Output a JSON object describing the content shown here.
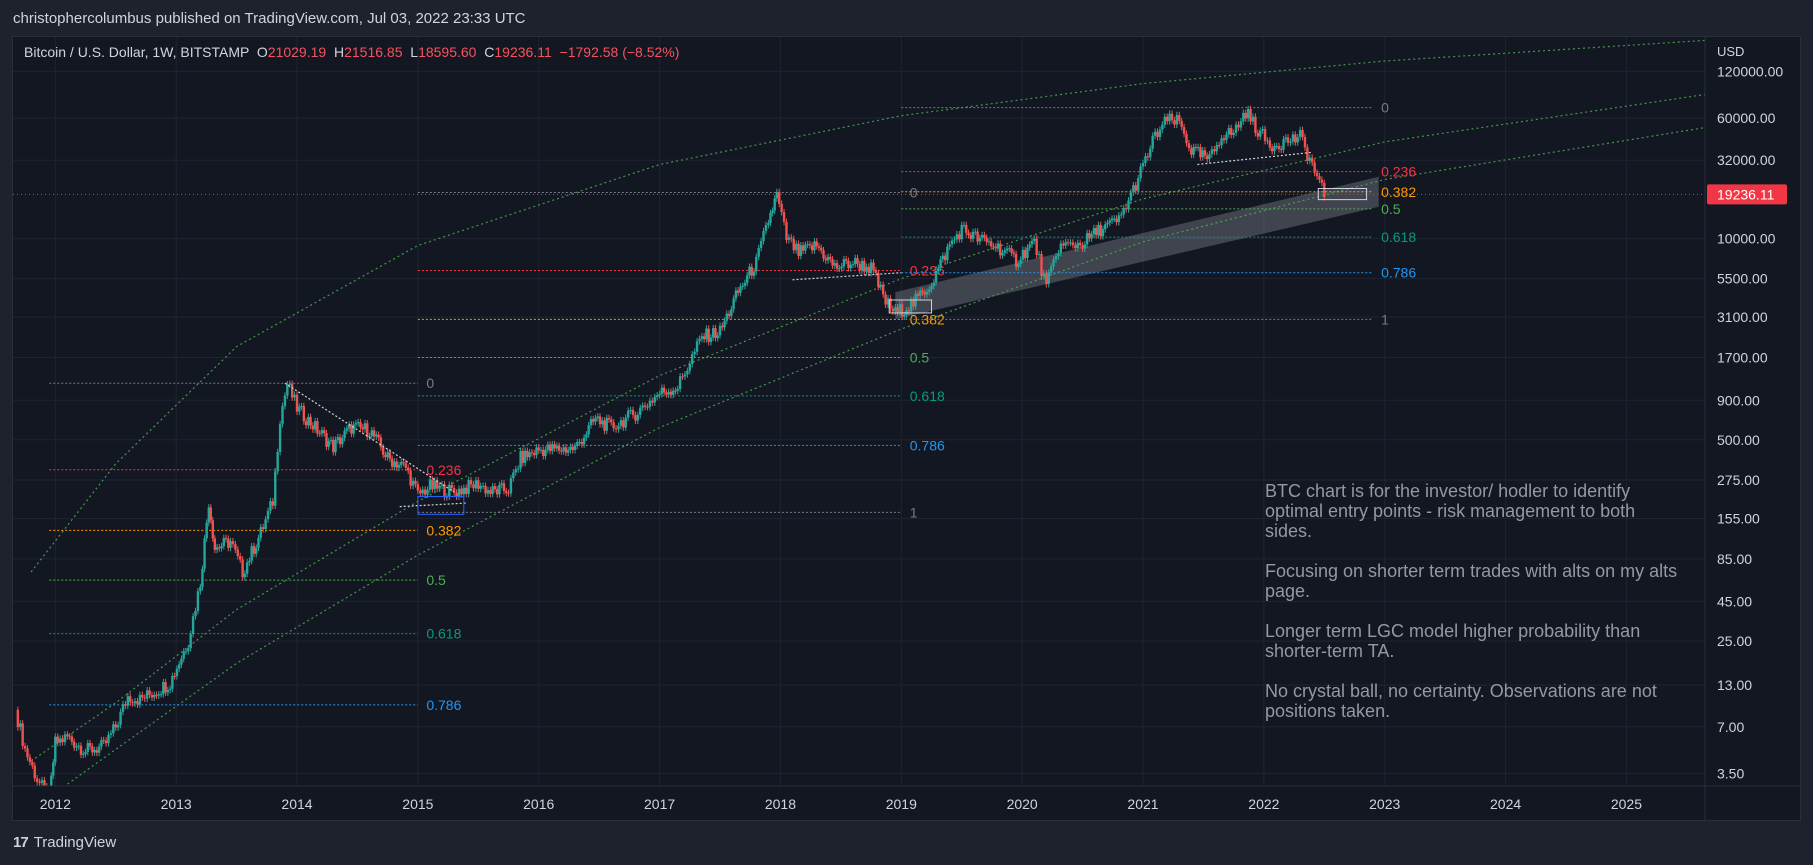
{
  "header": {
    "published": "christophercolumbus published on TradingView.com, Jul 03, 2022 23:33 UTC"
  },
  "legend": {
    "symbol": "Bitcoin / U.S. Dollar, 1W, BITSTAMP",
    "o_label": "O",
    "o_value": "21029.19",
    "h_label": "H",
    "h_value": "21516.85",
    "l_label": "L",
    "l_value": "18595.60",
    "c_label": "C",
    "c_value": "19236.11",
    "change": "−1792.58 (−8.52%)"
  },
  "footer": {
    "logo_mark": "17",
    "logo_text": "TradingView"
  },
  "note": {
    "p1": "BTC chart is for the investor/ hodler to identify optimal entry points - risk management to both sides.",
    "p2": "Focusing on shorter term trades with alts on my alts page.",
    "p3": "Longer term LGC model higher probability than shorter-term TA.",
    "p4": "No crystal ball, no certainty. Observations are not positions taken."
  },
  "colors": {
    "bg": "#131722",
    "up": "#26a69a",
    "down": "#ef5350",
    "grid": "#1f2430",
    "fib_0": "#787b86",
    "fib_236": "#f23645",
    "fib_382": "#ff9800",
    "fib_5": "#4caf50",
    "fib_618": "#089981",
    "fib_786": "#2196f3",
    "fib_1": "#787b86",
    "lgc": "#4caf50",
    "price_tag": "#f23645"
  },
  "chart_data": {
    "type": "candlestick",
    "timeframe": "1W",
    "currency": "USD",
    "y_scale": "log",
    "ylim": [
      2.9,
      200000
    ],
    "xlim": [
      2011.65,
      2025.65
    ],
    "x_ticks": [
      "2012",
      "2013",
      "2014",
      "2015",
      "2016",
      "2017",
      "2018",
      "2019",
      "2020",
      "2021",
      "2022",
      "2023",
      "2024",
      "2025"
    ],
    "y_ticks": [
      "120000.00",
      "60000.00",
      "32000.00",
      "10000.00",
      "5500.00",
      "3100.00",
      "1700.00",
      "900.00",
      "500.00",
      "275.00",
      "155.00",
      "85.00",
      "45.00",
      "25.00",
      "13.00",
      "7.00",
      "3.50"
    ],
    "last_price": "19236.11",
    "price_path": [
      [
        2011.67,
        9
      ],
      [
        2011.75,
        5
      ],
      [
        2011.85,
        3.2
      ],
      [
        2011.95,
        2.4
      ],
      [
        2012.0,
        5.5
      ],
      [
        2012.1,
        6
      ],
      [
        2012.25,
        4.9
      ],
      [
        2012.4,
        5.2
      ],
      [
        2012.5,
        7
      ],
      [
        2012.6,
        11
      ],
      [
        2012.7,
        10.5
      ],
      [
        2012.8,
        11.5
      ],
      [
        2012.95,
        13.5
      ],
      [
        2013.1,
        25
      ],
      [
        2013.2,
        60
      ],
      [
        2013.27,
        200
      ],
      [
        2013.32,
        100
      ],
      [
        2013.45,
        110
      ],
      [
        2013.55,
        70
      ],
      [
        2013.7,
        125
      ],
      [
        2013.8,
        200
      ],
      [
        2013.86,
        700
      ],
      [
        2013.92,
        1150
      ],
      [
        2014.0,
        800
      ],
      [
        2014.15,
        600
      ],
      [
        2014.3,
        450
      ],
      [
        2014.45,
        600
      ],
      [
        2014.6,
        580
      ],
      [
        2014.75,
        380
      ],
      [
        2014.9,
        330
      ],
      [
        2015.0,
        220
      ],
      [
        2015.1,
        250
      ],
      [
        2015.3,
        230
      ],
      [
        2015.5,
        260
      ],
      [
        2015.6,
        230
      ],
      [
        2015.75,
        240
      ],
      [
        2015.85,
        380
      ],
      [
        2016.0,
        430
      ],
      [
        2016.3,
        440
      ],
      [
        2016.47,
        680
      ],
      [
        2016.6,
        600
      ],
      [
        2016.8,
        740
      ],
      [
        2017.0,
        1000
      ],
      [
        2017.15,
        1100
      ],
      [
        2017.35,
        2300
      ],
      [
        2017.5,
        2500
      ],
      [
        2017.65,
        4500
      ],
      [
        2017.8,
        7000
      ],
      [
        2017.9,
        13000
      ],
      [
        2017.97,
        19000
      ],
      [
        2018.05,
        10000
      ],
      [
        2018.15,
        8000
      ],
      [
        2018.3,
        9000
      ],
      [
        2018.45,
        6500
      ],
      [
        2018.6,
        7000
      ],
      [
        2018.75,
        6400
      ],
      [
        2018.87,
        3900
      ],
      [
        2018.95,
        3300
      ],
      [
        2019.1,
        3800
      ],
      [
        2019.25,
        5200
      ],
      [
        2019.4,
        9000
      ],
      [
        2019.5,
        11500
      ],
      [
        2019.65,
        9800
      ],
      [
        2019.8,
        8800
      ],
      [
        2019.95,
        7200
      ],
      [
        2020.1,
        9500
      ],
      [
        2020.2,
        4800
      ],
      [
        2020.3,
        8800
      ],
      [
        2020.5,
        9300
      ],
      [
        2020.65,
        11500
      ],
      [
        2020.8,
        13000
      ],
      [
        2020.9,
        19000
      ],
      [
        2021.0,
        29000
      ],
      [
        2021.1,
        46000
      ],
      [
        2021.2,
        58000
      ],
      [
        2021.3,
        56000
      ],
      [
        2021.4,
        37000
      ],
      [
        2021.55,
        32000
      ],
      [
        2021.65,
        47000
      ],
      [
        2021.75,
        48000
      ],
      [
        2021.85,
        66000
      ],
      [
        2021.95,
        50000
      ],
      [
        2022.05,
        40000
      ],
      [
        2022.2,
        43000
      ],
      [
        2022.3,
        45000
      ],
      [
        2022.4,
        30000
      ],
      [
        2022.46,
        22000
      ],
      [
        2022.5,
        19236
      ]
    ],
    "fib_sets": [
      {
        "x_start": 2011.95,
        "x_end": 2015.0,
        "label_x": 2015.07,
        "levels": [
          {
            "ratio": "0",
            "price": 1160
          },
          {
            "ratio": "0.236",
            "price": 320
          },
          {
            "ratio": "0.382",
            "price": 130
          },
          {
            "ratio": "0.5",
            "price": 62
          },
          {
            "ratio": "0.618",
            "price": 28
          },
          {
            "ratio": "0.786",
            "price": 9.7
          },
          {
            "ratio": "1",
            "price": 2.7
          }
        ]
      },
      {
        "x_start": 2015.0,
        "x_end": 2019.0,
        "label_x": 2019.07,
        "levels": [
          {
            "ratio": "0",
            "price": 19800
          },
          {
            "ratio": "0.236",
            "price": 6200
          },
          {
            "ratio": "0.382",
            "price": 3000
          },
          {
            "ratio": "0.5",
            "price": 1700
          },
          {
            "ratio": "0.618",
            "price": 960
          },
          {
            "ratio": "0.786",
            "price": 460
          },
          {
            "ratio": "1",
            "price": 170
          }
        ]
      },
      {
        "x_start": 2019.0,
        "x_end": 2022.9,
        "label_x": 2022.97,
        "levels": [
          {
            "ratio": "0",
            "price": 70000
          },
          {
            "ratio": "0.236",
            "price": 27000
          },
          {
            "ratio": "0.382",
            "price": 20000
          },
          {
            "ratio": "0.5",
            "price": 15500
          },
          {
            "ratio": "0.618",
            "price": 10200
          },
          {
            "ratio": "0.786",
            "price": 6000
          },
          {
            "ratio": "1",
            "price": 3000
          }
        ]
      }
    ],
    "lgc_curves": [
      [
        [
          2011.8,
          70
        ],
        [
          2012.5,
          350
        ],
        [
          2013.5,
          2000
        ],
        [
          2015.0,
          9000
        ],
        [
          2017.0,
          30000
        ],
        [
          2019.0,
          62000
        ],
        [
          2021.0,
          100000
        ],
        [
          2023.0,
          140000
        ],
        [
          2025.65,
          190000
        ]
      ],
      [
        [
          2011.8,
          4.2
        ],
        [
          2012.5,
          10
        ],
        [
          2013.5,
          40
        ],
        [
          2015.0,
          200
        ],
        [
          2017.0,
          1300
        ],
        [
          2019.0,
          5500
        ],
        [
          2021.0,
          18000
        ],
        [
          2023.0,
          42000
        ],
        [
          2025.65,
          85000
        ]
      ],
      [
        [
          2011.9,
          2.3
        ],
        [
          2012.5,
          5
        ],
        [
          2013.5,
          18
        ],
        [
          2015.0,
          90
        ],
        [
          2017.0,
          600
        ],
        [
          2019.0,
          2600
        ],
        [
          2021.0,
          9500
        ],
        [
          2023.0,
          24000
        ],
        [
          2025.65,
          52000
        ]
      ]
    ],
    "channel_band": [
      [
        2018.95,
        3000
      ],
      [
        2022.95,
        16000
      ],
      [
        2022.95,
        25000
      ],
      [
        2018.95,
        4500
      ]
    ],
    "trend_lines": [
      {
        "points": [
          [
            2013.9,
            1160
          ],
          [
            2015.3,
            230
          ]
        ],
        "color": "#d1d4dc"
      },
      {
        "points": [
          [
            2014.85,
            185
          ],
          [
            2015.4,
            195
          ]
        ],
        "color": "#d1d4dc"
      },
      {
        "points": [
          [
            2018.1,
            5400
          ],
          [
            2019.0,
            6000
          ]
        ],
        "color": "#d1d4dc"
      },
      {
        "points": [
          [
            2021.45,
            30000
          ],
          [
            2022.4,
            36000
          ]
        ],
        "color": "#d1d4dc"
      }
    ],
    "boxes": [
      {
        "x0": 2015.0,
        "x1": 2015.38,
        "y0": 165,
        "y1": 215,
        "color": "#2962ff"
      },
      {
        "x0": 2018.9,
        "x1": 2019.25,
        "y0": 3300,
        "y1": 4000,
        "color": "#d1d4dc"
      },
      {
        "x0": 2022.45,
        "x1": 2022.85,
        "y0": 17800,
        "y1": 21000,
        "color": "#d1d4dc"
      }
    ]
  }
}
